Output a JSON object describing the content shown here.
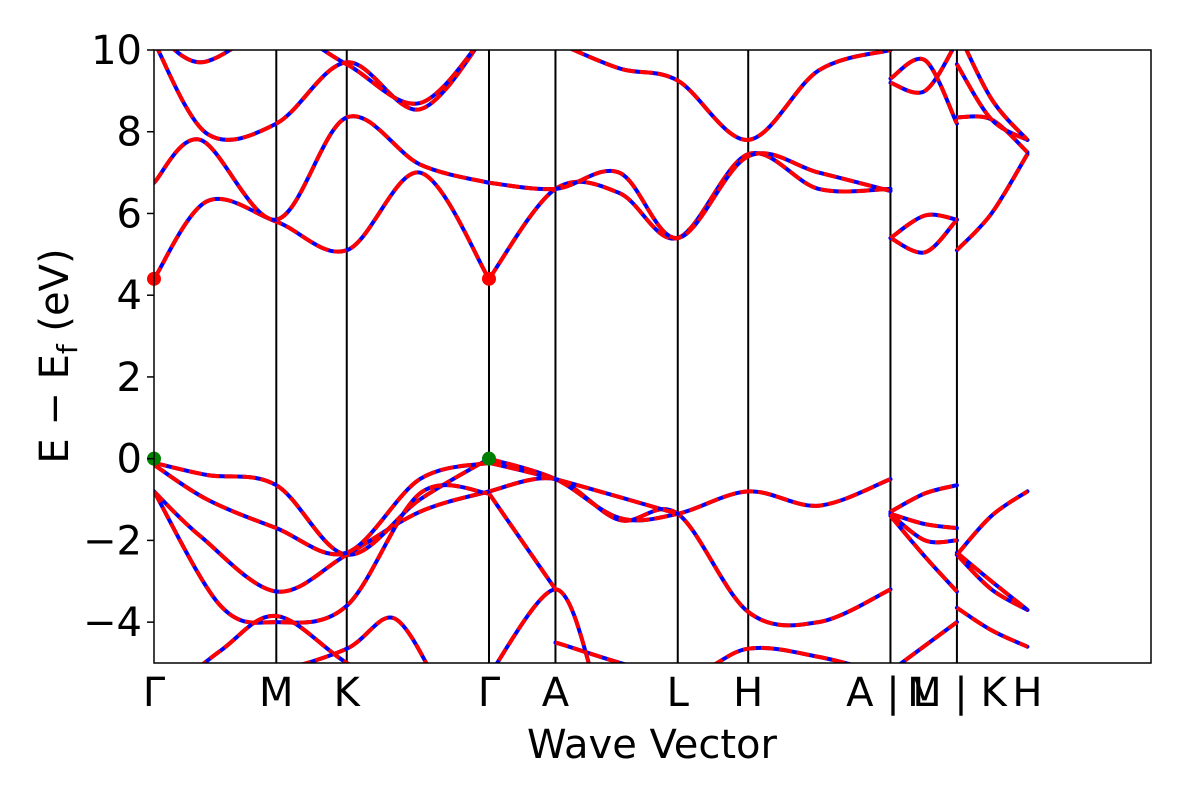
{
  "chart_data": {
    "type": "line",
    "title": "",
    "xlabel": "Wave Vector",
    "ylabel": "E − E",
    "ylabel_subscript": "f",
    "ylabel_suffix": " (eV)",
    "ylim": [
      -5,
      10
    ],
    "yticks": [
      -4,
      -2,
      0,
      2,
      4,
      6,
      8,
      10
    ],
    "ytick_labels": [
      "−4",
      "−2",
      "0",
      "2",
      "4",
      "6",
      "8",
      "10"
    ],
    "xlim": [
      0,
      7.5
    ],
    "kpoints": [
      {
        "label": "Γ",
        "x": 0.0
      },
      {
        "label": "M",
        "x": 0.92
      },
      {
        "label": "K",
        "x": 1.45
      },
      {
        "label": "Γ",
        "x": 2.52
      },
      {
        "label": "A",
        "x": 3.02
      },
      {
        "label": "L",
        "x": 3.94
      },
      {
        "label": "H",
        "x": 4.47
      },
      {
        "label": "A | L",
        "x": 5.54
      },
      {
        "label": "M | K",
        "x": 6.04
      },
      {
        "label": "H",
        "x": 6.57
      }
    ],
    "colors": {
      "primary": "#0000ff",
      "overlay": "#ff0000",
      "cbm_marker": "#ff0000",
      "vbm_marker": "#008000"
    },
    "markers": [
      {
        "name": "cbm",
        "x": 0.0,
        "y": 4.4,
        "color": "#ff0000"
      },
      {
        "name": "cbm",
        "x": 2.52,
        "y": 4.4,
        "color": "#ff0000"
      },
      {
        "name": "vbm",
        "x": 0.0,
        "y": 0.0,
        "color": "#008000"
      },
      {
        "name": "vbm",
        "x": 2.52,
        "y": 0.0,
        "color": "#008000"
      }
    ],
    "series": [
      {
        "segments": [
          {
            "x": [
              0.0,
              0.35,
              0.92,
              1.45,
              2.0,
              2.52
            ],
            "y": [
              -0.8,
              -1.9,
              -3.25,
              -2.35,
              -1.3,
              -0.8
            ]
          },
          {
            "x": [
              2.52,
              3.02,
              3.5,
              3.94,
              4.47,
              5.0,
              5.54
            ],
            "y": [
              -0.8,
              -0.5,
              -1.5,
              -1.35,
              -3.75,
              -4.0,
              -3.2
            ]
          },
          {
            "x": [
              5.54,
              5.8,
              6.04
            ],
            "y": [
              -1.4,
              -2.4,
              -3.25
            ]
          },
          {
            "x": [
              6.04,
              6.3,
              6.57
            ],
            "y": [
              -2.35,
              -3.2,
              -3.7
            ]
          }
        ]
      },
      {
        "segments": [
          {
            "x": [
              0.0,
              0.4,
              0.92,
              1.45,
              2.0,
              2.52
            ],
            "y": [
              -0.1,
              -0.4,
              -0.65,
              -2.35,
              -1.0,
              0.0
            ]
          },
          {
            "x": [
              2.52,
              3.02,
              3.5,
              3.94,
              4.47,
              5.0,
              5.54
            ],
            "y": [
              0.0,
              -0.5,
              -1.45,
              -1.35,
              -0.8,
              -1.15,
              -0.5
            ]
          },
          {
            "x": [
              5.54,
              5.8,
              6.04
            ],
            "y": [
              -1.3,
              -0.85,
              -0.65
            ]
          },
          {
            "x": [
              6.04,
              6.3,
              6.57
            ],
            "y": [
              -2.35,
              -1.4,
              -0.8
            ]
          }
        ]
      },
      {
        "segments": [
          {
            "x": [
              0.0,
              0.4,
              0.92,
              1.45,
              2.0,
              2.52
            ],
            "y": [
              -0.15,
              -1.0,
              -1.7,
              -2.3,
              -0.5,
              -0.1
            ]
          },
          {
            "x": [
              2.52,
              3.02,
              3.94
            ],
            "y": [
              -0.1,
              -0.5,
              -1.35
            ]
          },
          {
            "x": [
              5.54,
              5.8,
              6.04
            ],
            "y": [
              -1.35,
              -1.6,
              -1.7
            ]
          },
          {
            "x": [
              6.04,
              6.3,
              6.57
            ],
            "y": [
              -2.3,
              -3.0,
              -3.7
            ]
          }
        ]
      },
      {
        "segments": [
          {
            "x": [
              0.0,
              0.5,
              0.92,
              1.45,
              2.0,
              2.52
            ],
            "y": [
              -0.8,
              -3.6,
              -4.0,
              -3.6,
              -0.85,
              -0.85
            ]
          },
          {
            "x": [
              2.52,
              3.02
            ],
            "y": [
              -0.85,
              -3.2
            ]
          },
          {
            "x": [
              5.54,
              5.8,
              6.04
            ],
            "y": [
              -1.35,
              -2.0,
              -2.0
            ]
          },
          {
            "x": [
              6.04,
              6.3,
              6.57
            ],
            "y": [
              -3.65,
              -4.2,
              -4.6
            ]
          }
        ]
      },
      {
        "segments": [
          {
            "x": [
              0.0,
              0.4,
              0.92,
              1.45,
              2.0,
              2.52
            ],
            "y": [
              4.4,
              6.3,
              5.8,
              5.1,
              7.0,
              4.4
            ]
          },
          {
            "x": [
              2.52,
              3.02,
              3.5,
              3.94,
              4.47,
              5.0,
              5.54
            ],
            "y": [
              4.4,
              6.6,
              6.5,
              5.4,
              7.45,
              6.6,
              6.6
            ]
          },
          {
            "x": [
              5.54,
              5.8,
              6.04
            ],
            "y": [
              5.4,
              5.05,
              5.85
            ]
          },
          {
            "x": [
              6.04,
              6.3,
              6.57
            ],
            "y": [
              5.1,
              6.0,
              7.45
            ]
          }
        ]
      },
      {
        "segments": [
          {
            "x": [
              0.0,
              0.35,
              0.92,
              1.45,
              2.0,
              2.52
            ],
            "y": [
              6.75,
              7.8,
              5.85,
              8.35,
              7.2,
              6.75
            ]
          },
          {
            "x": [
              2.52,
              3.02,
              3.5,
              3.94,
              4.47,
              5.0,
              5.54
            ],
            "y": [
              6.75,
              6.6,
              7.0,
              5.4,
              7.4,
              7.0,
              6.55
            ]
          },
          {
            "x": [
              5.54,
              5.8,
              6.04
            ],
            "y": [
              5.4,
              5.95,
              5.85
            ]
          },
          {
            "x": [
              6.04,
              6.3,
              6.57
            ],
            "y": [
              8.35,
              8.3,
              7.5
            ]
          }
        ]
      },
      {
        "segments": [
          {
            "x": [
              0.0,
              0.4,
              0.92,
              1.45,
              2.0,
              2.52
            ],
            "y": [
              10.2,
              7.95,
              8.2,
              9.7,
              8.55,
              10.5
            ]
          },
          {
            "x": [
              3.02,
              3.5,
              3.94,
              4.47,
              5.0,
              5.54
            ],
            "y": [
              10.2,
              9.55,
              9.25,
              7.8,
              9.5,
              10.0
            ]
          },
          {
            "x": [
              5.54,
              5.8,
              6.04
            ],
            "y": [
              9.2,
              9.0,
              10.2
            ]
          },
          {
            "x": [
              6.04,
              6.3,
              6.57
            ],
            "y": [
              9.65,
              8.3,
              7.8
            ]
          }
        ]
      },
      {
        "segments": [
          {
            "x": [
              0.0,
              0.35,
              0.92,
              1.45,
              2.0,
              2.52
            ],
            "y": [
              10.5,
              9.7,
              10.5,
              9.65,
              8.7,
              10.5
            ]
          },
          {
            "x": [
              5.54,
              5.8,
              6.04
            ],
            "y": [
              9.3,
              9.75,
              8.2
            ]
          },
          {
            "x": [
              6.04,
              6.3,
              6.57
            ],
            "y": [
              10.5,
              8.8,
              7.8
            ]
          }
        ]
      },
      {
        "segments": [
          {
            "x": [
              0.0,
              0.5,
              0.92,
              1.45,
              2.0
            ],
            "y": [
              -6.0,
              -4.7,
              -3.85,
              -5.0,
              -6.0
            ]
          },
          {
            "x": [
              3.02,
              3.94,
              4.47,
              5.0,
              5.54
            ],
            "y": [
              -4.5,
              -5.3,
              -4.65,
              -4.85,
              -5.3
            ]
          },
          {
            "x": [
              5.54,
              6.04
            ],
            "y": [
              -5.2,
              -4.0
            ]
          }
        ]
      },
      {
        "segments": [
          {
            "x": [
              0.55,
              0.92,
              1.45,
              1.8,
              2.1
            ],
            "y": [
              -5.3,
              -5.2,
              -4.65,
              -3.9,
              -5.3
            ]
          },
          {
            "x": [
              2.52,
              3.02,
              3.3
            ],
            "y": [
              -5.3,
              -3.2,
              -5.3
            ]
          }
        ]
      }
    ]
  }
}
